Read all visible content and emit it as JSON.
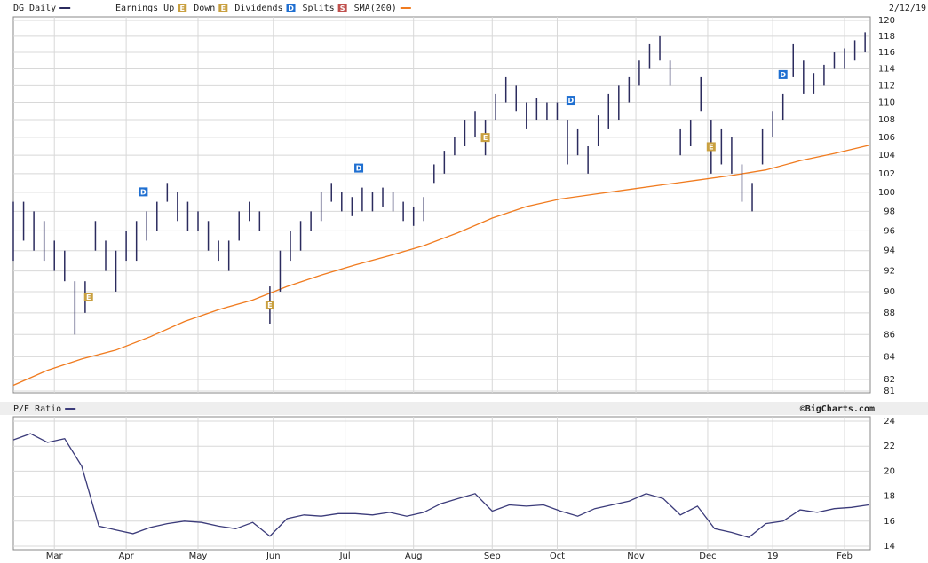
{
  "chart_data": [
    {
      "type": "ohlc",
      "date": "2/12/19",
      "log_scale": true,
      "grid": true,
      "xlim": [
        0,
        250
      ],
      "ylim": [
        81,
        120
      ],
      "yticks": [
        81,
        82,
        84,
        86,
        88,
        90,
        92,
        94,
        96,
        98,
        100,
        102,
        104,
        106,
        108,
        110,
        112,
        114,
        116,
        118,
        120
      ],
      "price": {
        "name": "DG Daily",
        "color": "#2b2b5e",
        "x": [
          0,
          3,
          6,
          9,
          12,
          15,
          18,
          21,
          24,
          27,
          30,
          33,
          36,
          39,
          42,
          45,
          48,
          51,
          54,
          57,
          60,
          63,
          66,
          69,
          72,
          75,
          78,
          81,
          84,
          87,
          90,
          93,
          96,
          99,
          102,
          105,
          108,
          111,
          114,
          117,
          120,
          123,
          126,
          129,
          132,
          135,
          138,
          141,
          144,
          147,
          150,
          153,
          156,
          159,
          162,
          165,
          168,
          171,
          174,
          177,
          180,
          183,
          186,
          189,
          192,
          195,
          198,
          201,
          204,
          207,
          210,
          213,
          216,
          219,
          222,
          225,
          228,
          231,
          234,
          237,
          240,
          243,
          246,
          249
        ],
        "low": [
          93,
          95,
          94,
          93,
          92,
          91,
          86,
          88,
          94,
          92,
          90,
          93,
          93,
          95,
          96,
          99,
          97,
          96,
          96,
          94,
          93,
          92,
          95,
          97,
          96,
          87,
          90,
          93,
          94,
          96,
          97,
          99,
          98,
          97.5,
          98,
          98,
          98.5,
          98,
          97,
          96.5,
          97,
          101,
          102,
          104,
          105,
          106,
          104,
          108,
          110,
          109,
          107,
          108,
          108,
          108,
          103,
          104,
          102,
          105,
          107,
          108,
          110,
          112,
          114,
          115,
          112,
          104,
          105,
          109,
          102,
          103,
          102,
          99,
          98,
          103,
          106,
          108,
          113,
          111,
          111,
          112,
          114,
          114,
          115,
          116
        ],
        "high": [
          99,
          99,
          98,
          97,
          95,
          94,
          91,
          91,
          97,
          95,
          94,
          96,
          97,
          98,
          99,
          101,
          100,
          99,
          98,
          97,
          95,
          95,
          98,
          99,
          98,
          90.5,
          94,
          96,
          97,
          98,
          100,
          101,
          100,
          99.5,
          100.5,
          100,
          100.5,
          100,
          99,
          98.5,
          99.5,
          103,
          104.5,
          106,
          108,
          109,
          108,
          111,
          113,
          112,
          110,
          110.5,
          110,
          110,
          108,
          107,
          105,
          108.5,
          111,
          112,
          113,
          115,
          117,
          118,
          115,
          107,
          108,
          113,
          108,
          107,
          106,
          103,
          101,
          107,
          109,
          111,
          117,
          115,
          113.5,
          114.5,
          116,
          116.5,
          117.5,
          118.5
        ]
      },
      "sma": {
        "name": "SMA(200)",
        "color": "#f07b1f",
        "x": [
          0,
          10,
          20,
          30,
          40,
          50,
          60,
          70,
          80,
          90,
          100,
          110,
          120,
          130,
          140,
          150,
          160,
          170,
          180,
          190,
          200,
          210,
          220,
          230,
          240,
          250
        ],
        "values": [
          81.5,
          82.8,
          83.8,
          84.6,
          85.8,
          87.2,
          88.3,
          89.2,
          90.5,
          91.6,
          92.6,
          93.5,
          94.5,
          95.8,
          97.3,
          98.5,
          99.3,
          99.8,
          100.3,
          100.8,
          101.3,
          101.8,
          102.4,
          103.4,
          104.2,
          105.1
        ]
      },
      "markers": [
        {
          "name": "Earnings Up",
          "icon": "E",
          "color": "#c9a040",
          "x": [
            22,
            75,
            204
          ]
        },
        {
          "name": "Down",
          "icon": "E",
          "color": "#c9a040",
          "x": [
            138
          ]
        },
        {
          "name": "Dividends",
          "icon": "D",
          "color": "#1f6fd1",
          "x": [
            38,
            101,
            163,
            225
          ]
        },
        {
          "name": "Splits",
          "icon": "S",
          "color": "#c0504d",
          "x": []
        }
      ]
    },
    {
      "type": "line",
      "credit": "©BigCharts.com",
      "grid": true,
      "xlim": [
        0,
        250
      ],
      "ylim": [
        14,
        24
      ],
      "yticks": [
        14,
        16,
        18,
        20,
        22,
        24
      ],
      "xticks": [
        {
          "value": 12,
          "label": "Mar"
        },
        {
          "value": 33,
          "label": "Apr"
        },
        {
          "value": 54,
          "label": "May"
        },
        {
          "value": 76,
          "label": "Jun"
        },
        {
          "value": 97,
          "label": "Jul"
        },
        {
          "value": 117,
          "label": "Aug"
        },
        {
          "value": 140,
          "label": "Sep"
        },
        {
          "value": 159,
          "label": "Oct"
        },
        {
          "value": 182,
          "label": "Nov"
        },
        {
          "value": 203,
          "label": "Dec"
        },
        {
          "value": 222,
          "label": "19"
        },
        {
          "value": 243,
          "label": "Feb"
        }
      ],
      "series": [
        {
          "name": "P/E Ratio",
          "color": "#3b3b7a",
          "x": [
            0,
            5,
            10,
            15,
            20,
            25,
            30,
            35,
            40,
            45,
            50,
            55,
            60,
            65,
            70,
            75,
            80,
            85,
            90,
            95,
            100,
            105,
            110,
            115,
            120,
            125,
            130,
            135,
            140,
            145,
            150,
            155,
            160,
            165,
            170,
            175,
            180,
            185,
            190,
            195,
            200,
            205,
            210,
            215,
            220,
            225,
            230,
            235,
            240,
            245,
            250
          ],
          "values": [
            22.5,
            23.0,
            22.3,
            22.6,
            20.4,
            15.6,
            15.3,
            15.0,
            15.5,
            15.8,
            16.0,
            15.9,
            15.6,
            15.4,
            15.9,
            14.8,
            16.2,
            16.5,
            16.4,
            16.6,
            16.6,
            16.5,
            16.7,
            16.4,
            16.7,
            17.4,
            17.8,
            18.2,
            16.8,
            17.3,
            17.2,
            17.3,
            16.8,
            16.4,
            17.0,
            17.3,
            17.6,
            18.2,
            17.8,
            16.5,
            17.2,
            15.4,
            15.1,
            14.7,
            15.8,
            16.0,
            16.9,
            16.7,
            17.0,
            17.1,
            17.3
          ]
        }
      ]
    }
  ]
}
